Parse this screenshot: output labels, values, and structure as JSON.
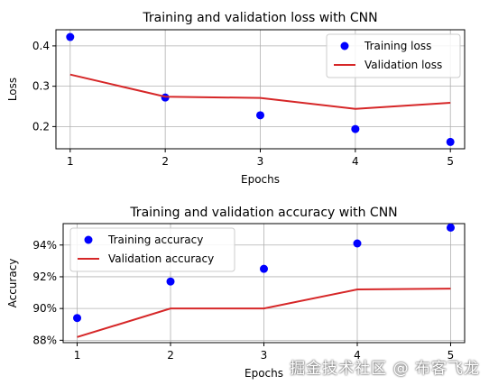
{
  "chart_data": [
    {
      "type": "scatter+line",
      "title": "Training and validation loss with CNN",
      "xlabel": "Epochs",
      "ylabel": "Loss",
      "x": [
        1,
        2,
        3,
        4,
        5
      ],
      "xticks": [
        "1",
        "2",
        "3",
        "4",
        "5"
      ],
      "yticks": [
        "0.2",
        "0.3",
        "0.4"
      ],
      "ylim": [
        0.145,
        0.44
      ],
      "grid": true,
      "legend_position": "upper right",
      "series": [
        {
          "name": "Training loss",
          "style": "points",
          "color": "#0000ff",
          "values": [
            0.422,
            0.272,
            0.228,
            0.194,
            0.162
          ]
        },
        {
          "name": "Validation loss",
          "style": "line",
          "color": "#d62728",
          "values": [
            0.329,
            0.274,
            0.271,
            0.244,
            0.259
          ]
        }
      ]
    },
    {
      "type": "scatter+line",
      "title": "Training and validation accuracy with CNN",
      "xlabel": "Epochs",
      "ylabel": "Accuracy",
      "x": [
        1,
        2,
        3,
        4,
        5
      ],
      "xticks": [
        "1",
        "2",
        "3",
        "4",
        "5"
      ],
      "yticks": [
        "88%",
        "90%",
        "92%",
        "94%"
      ],
      "ytick_values": [
        88,
        90,
        92,
        94
      ],
      "ylim": [
        87.85,
        95.35
      ],
      "grid": true,
      "legend_position": "upper left",
      "series": [
        {
          "name": "Training accuracy",
          "style": "points",
          "color": "#0000ff",
          "values": [
            89.4,
            91.7,
            92.5,
            94.1,
            95.1
          ]
        },
        {
          "name": "Validation accuracy",
          "style": "line",
          "color": "#d62728",
          "values": [
            88.2,
            90.0,
            90.0,
            91.2,
            91.25
          ]
        }
      ]
    }
  ],
  "watermark": "掘金技术社区 @ 布客飞龙"
}
